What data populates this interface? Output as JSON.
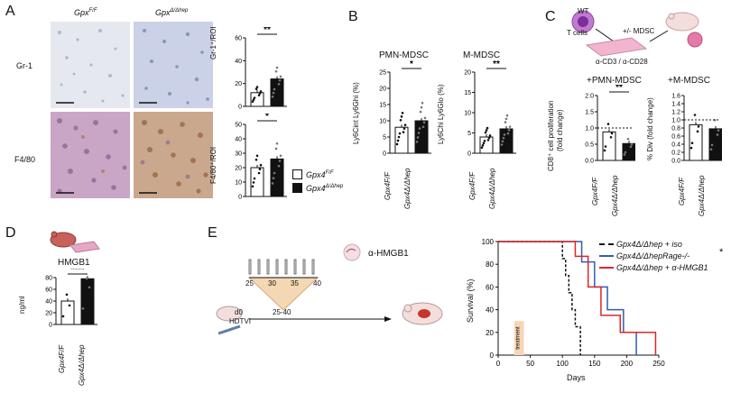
{
  "panels": {
    "A": {
      "letter": "A",
      "col_labels": [
        "Gpx",
        "F/F",
        "Gpx",
        "Δ/Δhep"
      ],
      "row_labels": [
        "Gr-1",
        "F4/80"
      ],
      "charts": {
        "gr1": {
          "ylabel": "Gr-1⁺/ROI",
          "sig": "**",
          "yticks": [
            "0",
            "20",
            "40",
            "60"
          ]
        },
        "f480": {
          "ylabel": "F4/80⁺/ROI",
          "sig": "*",
          "yticks": [
            "0",
            "10",
            "20",
            "30",
            "40",
            "50"
          ]
        }
      },
      "legend": [
        {
          "base": "Gpx4",
          "sup": "F/F",
          "fill": "#ffffff"
        },
        {
          "base": "Gpx4",
          "sup": "Δ/Δhep",
          "fill": "#111111"
        }
      ]
    },
    "B": {
      "letter": "B",
      "pmn": {
        "title": "PMN-MDSC",
        "ylabel": "Ly6Cint Ly6Ghi (%)",
        "sig": "*",
        "yticks": [
          "0",
          "5",
          "10",
          "15",
          "20",
          "25"
        ]
      },
      "m": {
        "title": "M-MDSC",
        "ylabel": "Ly6Chi Ly6Glo (%)",
        "sig": "**",
        "yticks": [
          "0",
          "5",
          "10",
          "15",
          "20"
        ]
      },
      "xlabels": [
        "Gpx4F/F",
        "Gpx4Δ/Δhep"
      ]
    },
    "C": {
      "letter": "C",
      "wt_label": "WT",
      "tcells_label": "T cells",
      "mdsc_label": "+/- MDSC",
      "antibody_label": "α-CD3 / α-CD28",
      "pmn_title": "+PMN-MDSC",
      "m_title": "+M-MDSC",
      "ylabel_left_1": "CD8⁺ cell proliferation",
      "ylabel_left_2": "(fold change)",
      "ylabel_right_1": "% Div (fold change)",
      "sig": "**",
      "left_yticks": [
        "0.0",
        "0.5",
        "1.0",
        "1.5",
        "2.0"
      ],
      "right_yticks": [
        "0.0",
        "0.2",
        "0.4",
        "0.6",
        "0.8",
        "1.0",
        "1.2",
        "1.4",
        "1.6"
      ],
      "xlabels": [
        "Gpx4F/F",
        "Gpx4Δ/Δhep"
      ]
    },
    "D": {
      "letter": "D",
      "title": "HMGB1",
      "ylabel": "ng/ml",
      "sig": "****",
      "yticks": [
        "0",
        "20",
        "40",
        "60",
        "80"
      ],
      "xlabels": [
        "Gpx4F/F",
        "Gpx4Δ/Δhep"
      ]
    },
    "E": {
      "letter": "E",
      "d0_label": "d0",
      "hdtvi_label": "HDTVI",
      "day_ticks": [
        "25",
        "30",
        "35",
        "40"
      ],
      "range_label": "25-40",
      "antibody_label": "α-HMGB1",
      "ylabel": "Survival (%)",
      "xlabel": "Days",
      "treatment_label": "treatment",
      "sig": "*",
      "legend": [
        {
          "text": "Gpx4Δ/Δhep + iso",
          "color": "#111111"
        },
        {
          "text": "Gpx4Δ/ΔhepRage-/-",
          "color": "#2e5fb0"
        },
        {
          "text": "Gpx4Δ/Δhep + α-HMGB1",
          "color": "#e02525"
        }
      ]
    }
  },
  "chart_data": [
    {
      "type": "bar",
      "title": "",
      "xlabel": "",
      "ylabel": "Gr-1+/ROI",
      "categories": [
        "Gpx4F/F",
        "Gpx4Δ/Δhep"
      ],
      "values": [
        12,
        24
      ],
      "ylim": [
        0,
        60
      ],
      "significance": "**"
    },
    {
      "type": "bar",
      "title": "",
      "xlabel": "",
      "ylabel": "F4/80+/ROI",
      "categories": [
        "Gpx4F/F",
        "Gpx4Δ/Δhep"
      ],
      "values": [
        20,
        26
      ],
      "ylim": [
        0,
        50
      ],
      "significance": "*"
    },
    {
      "type": "bar",
      "title": "PMN-MDSC",
      "xlabel": "",
      "ylabel": "Ly6Cint Ly6Ghi (%)",
      "categories": [
        "Gpx4F/F",
        "Gpx4Δ/Δhep"
      ],
      "values": [
        8,
        10
      ],
      "ylim": [
        0,
        25
      ],
      "significance": "*"
    },
    {
      "type": "bar",
      "title": "M-MDSC",
      "xlabel": "",
      "ylabel": "Ly6Chi Ly6Glo (%)",
      "categories": [
        "Gpx4F/F",
        "Gpx4Δ/Δhep"
      ],
      "values": [
        4,
        6
      ],
      "ylim": [
        0,
        20
      ],
      "significance": "**"
    },
    {
      "type": "bar",
      "title": "+PMN-MDSC",
      "xlabel": "",
      "ylabel": "CD8+ cell proliferation (fold change)",
      "categories": [
        "Gpx4F/F",
        "Gpx4Δ/Δhep"
      ],
      "values": [
        0.88,
        0.52
      ],
      "ylim": [
        0,
        2.0
      ],
      "reference_line": 1.0,
      "significance": "**"
    },
    {
      "type": "bar",
      "title": "+M-MDSC",
      "xlabel": "",
      "ylabel": "% Div (fold change)",
      "categories": [
        "Gpx4F/F",
        "Gpx4Δ/Δhep"
      ],
      "values": [
        0.88,
        0.78
      ],
      "ylim": [
        0,
        1.6
      ],
      "reference_line": 1.0
    },
    {
      "type": "bar",
      "title": "HMGB1",
      "xlabel": "",
      "ylabel": "ng/ml",
      "categories": [
        "Gpx4F/F",
        "Gpx4Δ/Δhep"
      ],
      "values": [
        40,
        78
      ],
      "ylim": [
        0,
        80
      ],
      "significance": "****"
    },
    {
      "type": "line",
      "title": "",
      "xlabel": "Days",
      "ylabel": "Survival (%)",
      "xlim": [
        0,
        250
      ],
      "ylim": [
        0,
        100
      ],
      "xticks": [
        0,
        50,
        100,
        150,
        200,
        250
      ],
      "yticks": [
        0,
        20,
        40,
        60,
        80,
        100
      ],
      "series": [
        {
          "name": "Gpx4Δ/Δhep + iso",
          "x": [
            0,
            95,
            100,
            105,
            110,
            115,
            120,
            128
          ],
          "y": [
            100,
            100,
            85,
            70,
            55,
            40,
            25,
            0
          ]
        },
        {
          "name": "Gpx4Δ/ΔhepRage-/-",
          "x": [
            0,
            110,
            130,
            150,
            170,
            195,
            215
          ],
          "y": [
            100,
            100,
            82,
            60,
            40,
            20,
            0
          ]
        },
        {
          "name": "Gpx4Δ/Δhep + α-HMGB1",
          "x": [
            0,
            100,
            120,
            140,
            160,
            190,
            230,
            245
          ],
          "y": [
            100,
            100,
            87,
            60,
            35,
            20,
            20,
            0
          ]
        }
      ],
      "annotation": "treatment",
      "significance": "*"
    }
  ]
}
